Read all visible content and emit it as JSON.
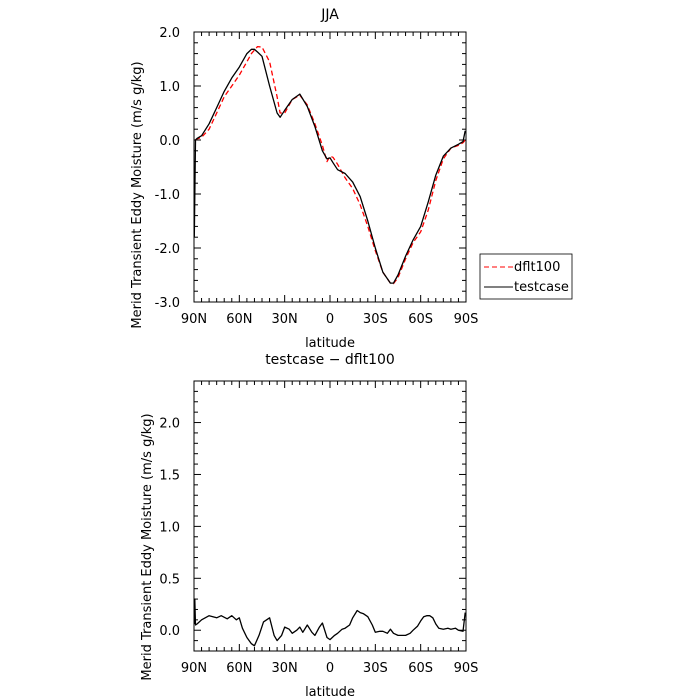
{
  "chart_data": [
    {
      "type": "line",
      "title": "JJA",
      "xlabel": "latitude",
      "ylabel": "Merid Transient Eddy Moisture (m/s g/kg)",
      "xlim": [
        90,
        -90
      ],
      "ylim": [
        -3.0,
        2.0
      ],
      "x_ticks": [
        90,
        60,
        30,
        0,
        -30,
        -60,
        -90
      ],
      "x_tick_labels": [
        "90N",
        "60N",
        "30N",
        "0",
        "30S",
        "60S",
        "90S"
      ],
      "y_ticks": [
        2.0,
        1.0,
        0.0,
        -1.0,
        -2.0,
        -3.0
      ],
      "y_tick_labels": [
        "2.0",
        "1.0",
        "0.0",
        "-1.0",
        "-2.0",
        "-3.0"
      ],
      "legend": {
        "position": "right"
      },
      "series": [
        {
          "name": "dflt100",
          "color": "#ff0000",
          "dash": "dashed",
          "x": [
            89,
            88,
            85,
            80,
            75,
            70,
            65,
            60,
            55,
            52,
            48,
            45,
            40,
            35,
            33,
            30,
            25,
            20,
            15,
            10,
            5,
            2,
            0,
            -2,
            -5,
            -10,
            -15,
            -20,
            -25,
            -30,
            -35,
            -40,
            -42,
            -45,
            -50,
            -55,
            -60,
            -65,
            -70,
            -75,
            -80,
            -85,
            -88,
            -89.5
          ],
          "values": [
            0.0,
            0.02,
            0.05,
            0.2,
            0.5,
            0.8,
            1.0,
            1.2,
            1.45,
            1.6,
            1.73,
            1.72,
            1.45,
            0.8,
            0.5,
            0.5,
            0.75,
            0.83,
            0.65,
            0.3,
            -0.1,
            -0.4,
            -0.3,
            -0.32,
            -0.45,
            -0.7,
            -0.9,
            -1.2,
            -1.6,
            -2.05,
            -2.45,
            -2.65,
            -2.66,
            -2.55,
            -2.2,
            -1.9,
            -1.7,
            -1.3,
            -0.75,
            -0.35,
            -0.15,
            -0.1,
            -0.05,
            0.0
          ]
        },
        {
          "name": "testcase",
          "color": "#000000",
          "dash": "solid",
          "x": [
            89.8,
            89,
            88,
            85,
            80,
            75,
            70,
            65,
            60,
            55,
            52,
            50,
            48,
            45,
            40,
            35,
            33,
            30,
            25,
            20,
            15,
            10,
            5,
            2,
            0,
            -2,
            -5,
            -10,
            -15,
            -20,
            -25,
            -30,
            -35,
            -40,
            -42,
            -45,
            -50,
            -55,
            -60,
            -65,
            -70,
            -75,
            -80,
            -85,
            -88,
            -89.5
          ],
          "values": [
            -1.8,
            0.0,
            0.03,
            0.08,
            0.3,
            0.6,
            0.9,
            1.15,
            1.35,
            1.6,
            1.68,
            1.68,
            1.63,
            1.55,
            1.0,
            0.5,
            0.42,
            0.55,
            0.75,
            0.85,
            0.62,
            0.25,
            -0.2,
            -0.35,
            -0.33,
            -0.42,
            -0.55,
            -0.62,
            -0.78,
            -1.05,
            -1.5,
            -2.0,
            -2.45,
            -2.65,
            -2.65,
            -2.5,
            -2.15,
            -1.85,
            -1.6,
            -1.15,
            -0.65,
            -0.3,
            -0.15,
            -0.08,
            -0.03,
            0.17
          ]
        }
      ]
    },
    {
      "type": "line",
      "title": "testcase − dflt100",
      "xlabel": "latitude",
      "ylabel": "Merid Transient Eddy Moisture (m/s g/kg)",
      "xlim": [
        90,
        -90
      ],
      "ylim": [
        -0.2,
        2.4
      ],
      "x_ticks": [
        90,
        60,
        30,
        0,
        -30,
        -60,
        -90
      ],
      "x_tick_labels": [
        "90N",
        "60N",
        "30N",
        "0",
        "30S",
        "60S",
        "90S"
      ],
      "y_ticks": [
        2.0,
        1.5,
        1.0,
        0.5,
        0.0
      ],
      "y_tick_labels": [
        "2.0",
        "1.5",
        "1.0",
        "0.5",
        "0.0"
      ],
      "series": [
        {
          "color": "#000000",
          "dash": "solid",
          "x": [
            89.8,
            89.5,
            89,
            88,
            85,
            80,
            75,
            72,
            68,
            65,
            62,
            60,
            58,
            55,
            52,
            50,
            47,
            44,
            40,
            37,
            35,
            32,
            30,
            27,
            25,
            22,
            20,
            18,
            15,
            12,
            10,
            7,
            5,
            2,
            0,
            -3,
            -5,
            -8,
            -10,
            -13,
            -15,
            -18,
            -20,
            -22,
            -25,
            -28,
            -30,
            -33,
            -35,
            -38,
            -40,
            -42,
            -45,
            -50,
            -53,
            -55,
            -58,
            -60,
            -62,
            -64,
            -66,
            -68,
            -70,
            -72,
            -75,
            -78,
            -80,
            -83,
            -85,
            -88,
            -89.5
          ],
          "values": [
            0.06,
            0.3,
            0.05,
            0.06,
            0.1,
            0.14,
            0.12,
            0.14,
            0.11,
            0.14,
            0.1,
            0.12,
            0.02,
            -0.07,
            -0.13,
            -0.15,
            -0.05,
            0.08,
            0.12,
            -0.05,
            -0.1,
            -0.05,
            0.03,
            0.01,
            -0.03,
            0.0,
            0.03,
            -0.02,
            0.05,
            -0.02,
            -0.05,
            0.03,
            0.07,
            -0.07,
            -0.09,
            -0.05,
            -0.03,
            0.01,
            0.02,
            0.05,
            0.12,
            0.19,
            0.17,
            0.16,
            0.13,
            0.05,
            -0.02,
            -0.01,
            -0.01,
            -0.03,
            0.01,
            -0.03,
            -0.05,
            -0.05,
            -0.03,
            0.0,
            0.04,
            0.09,
            0.13,
            0.14,
            0.14,
            0.12,
            0.06,
            0.02,
            0.01,
            0.02,
            0.01,
            0.02,
            0.0,
            -0.01,
            0.17
          ]
        }
      ]
    }
  ]
}
